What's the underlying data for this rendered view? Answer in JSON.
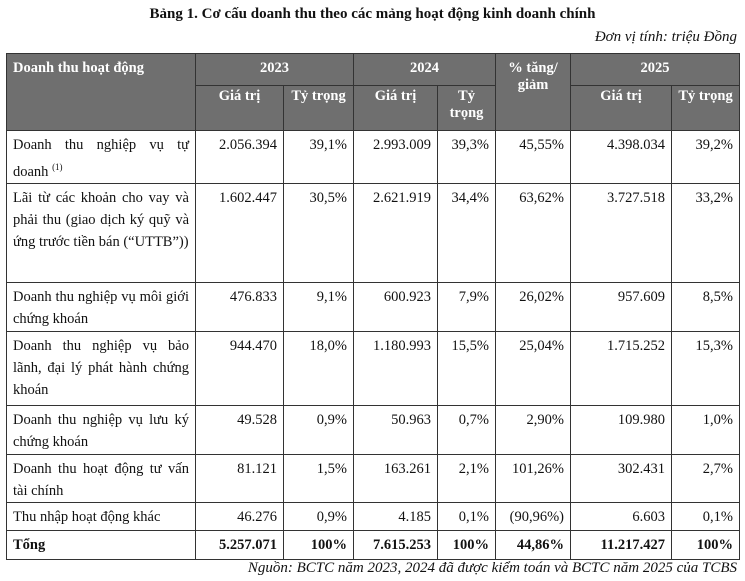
{
  "title": "Bảng 1. Cơ cấu doanh thu theo các mảng hoạt động kinh doanh chính",
  "unit": "Đơn vị tính: triệu Đồng",
  "header": {
    "activity": "Doanh thu hoạt động",
    "y2023": "2023",
    "y2024": "2024",
    "change": "% tăng/ giảm",
    "y2025": "2025",
    "value": "Giá trị",
    "ratio": "Tỷ trọng"
  },
  "rows": [
    {
      "name": "Doanh thu nghiệp vụ tự doanh",
      "note": "(1)",
      "v2023": "2.056.394",
      "r2023": "39,1%",
      "v2024": "2.993.009",
      "r2024": "39,3%",
      "change": "45,55%",
      "v2025": "4.398.034",
      "r2025": "39,2%"
    },
    {
      "name": "Lãi từ các khoản cho vay và phải thu (giao dịch ký quỹ và ứng trước tiền bán (“UTTB”))",
      "v2023": "1.602.447",
      "r2023": "30,5%",
      "v2024": "2.621.919",
      "r2024": "34,4%",
      "change": "63,62%",
      "v2025": "3.727.518",
      "r2025": "33,2%"
    },
    {
      "name": "Doanh thu nghiệp vụ môi giới chứng khoán",
      "v2023": "476.833",
      "r2023": "9,1%",
      "v2024": "600.923",
      "r2024": "7,9%",
      "change": "26,02%",
      "v2025": "957.609",
      "r2025": "8,5%"
    },
    {
      "name": "Doanh thu nghiệp vụ bảo lãnh, đại lý phát hành chứng khoán",
      "v2023": "944.470",
      "r2023": "18,0%",
      "v2024": "1.180.993",
      "r2024": "15,5%",
      "change": "25,04%",
      "v2025": "1.715.252",
      "r2025": "15,3%"
    },
    {
      "name": "Doanh thu nghiệp vụ lưu ký chứng khoán",
      "v2023": "49.528",
      "r2023": "0,9%",
      "v2024": "50.963",
      "r2024": "0,7%",
      "change": "2,90%",
      "v2025": "109.980",
      "r2025": "1,0%"
    },
    {
      "name": "Doanh thu hoạt động tư vấn tài chính",
      "v2023": "81.121",
      "r2023": "1,5%",
      "v2024": "163.261",
      "r2024": "2,1%",
      "change": "101,26%",
      "v2025": "302.431",
      "r2025": "2,7%"
    },
    {
      "name": "Thu nhập hoạt động khác",
      "v2023": "46.276",
      "r2023": "0,9%",
      "v2024": "4.185",
      "r2024": "0,1%",
      "change": "(90,96%)",
      "v2025": "6.603",
      "r2025": "0,1%"
    }
  ],
  "total": {
    "name": "Tổng",
    "v2023": "5.257.071",
    "r2023": "100%",
    "v2024": "7.615.253",
    "r2024": "100%",
    "change": "44,86%",
    "v2025": "11.217.427",
    "r2025": "100%"
  },
  "source": "Nguồn: BCTC năm 2023, 2024 đã được kiểm toán và BCTC năm 2025 của TCBS"
}
